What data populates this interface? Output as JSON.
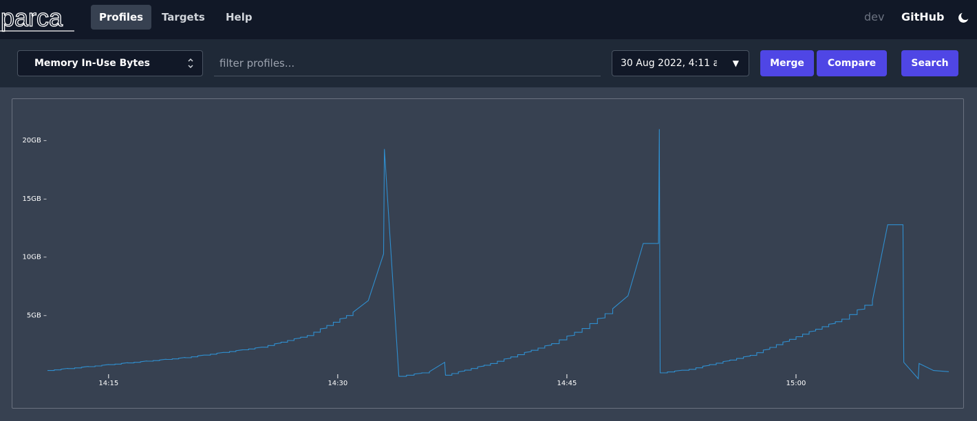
{
  "nav": {
    "logo_text": "parca",
    "items": [
      {
        "label": "Profiles",
        "active": true
      },
      {
        "label": "Targets",
        "active": false
      },
      {
        "label": "Help",
        "active": false
      }
    ],
    "dev_label": "dev",
    "github_label": "GitHub",
    "theme_icon": "moon-icon"
  },
  "toolbar": {
    "profile_type": "Memory In-Use Bytes",
    "filter_placeholder": "filter profiles...",
    "date_range": "30 Aug 2022, 4:11 a...",
    "merge_label": "Merge",
    "compare_label": "Compare",
    "search_label": "Search"
  },
  "colors": {
    "accent": "#4f46e5",
    "line": "#2f8fd0"
  },
  "chart_data": {
    "type": "line",
    "y_unit": "GB",
    "x_ticks": [
      "14:15",
      "14:30",
      "14:45",
      "15:00"
    ],
    "y_ticks": [
      "5GB",
      "10GB",
      "15GB",
      "20GB"
    ],
    "ylim": [
      0,
      22
    ],
    "series": [
      {
        "values": [
          {
            "t": "14:11",
            "y": 0.2
          },
          {
            "t": "14:15",
            "y": 0.7
          },
          {
            "t": "14:20",
            "y": 1.3
          },
          {
            "t": "14:25",
            "y": 2.2
          },
          {
            "t": "14:28",
            "y": 3.2
          },
          {
            "t": "14:31",
            "y": 5.2
          },
          {
            "t": "14:32",
            "y": 6.2
          },
          {
            "t": "14:33",
            "y": 10.2
          },
          {
            "t": "14:33",
            "y": 19.2
          },
          {
            "t": "14:34",
            "y": -0.3
          },
          {
            "t": "14:36",
            "y": 0.1
          },
          {
            "t": "14:37",
            "y": 0.9
          },
          {
            "t": "14:37",
            "y": -0.2
          },
          {
            "t": "14:40",
            "y": 0.8
          },
          {
            "t": "14:44",
            "y": 2.5
          },
          {
            "t": "14:46",
            "y": 3.8
          },
          {
            "t": "14:48",
            "y": 5.5
          },
          {
            "t": "14:49",
            "y": 6.6
          },
          {
            "t": "14:50",
            "y": 11.1
          },
          {
            "t": "14:51",
            "y": 11.1
          },
          {
            "t": "14:51",
            "y": 20.9
          },
          {
            "t": "14:51",
            "y": 0.0
          },
          {
            "t": "14:53",
            "y": 0.3
          },
          {
            "t": "14:57",
            "y": 1.5
          },
          {
            "t": "15:00",
            "y": 3.1
          },
          {
            "t": "15:03",
            "y": 4.6
          },
          {
            "t": "15:05",
            "y": 6.2
          },
          {
            "t": "15:06",
            "y": 12.7
          },
          {
            "t": "15:07",
            "y": 12.7
          },
          {
            "t": "15:07",
            "y": 0.9
          },
          {
            "t": "15:08",
            "y": -0.5
          },
          {
            "t": "15:08",
            "y": 0.8
          },
          {
            "t": "15:09",
            "y": 0.2
          },
          {
            "t": "15:10",
            "y": 0.1
          }
        ]
      }
    ]
  }
}
